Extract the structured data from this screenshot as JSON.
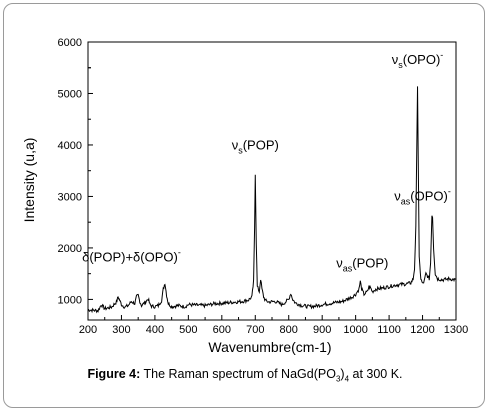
{
  "chart_data": {
    "type": "line",
    "xlabel": "Wavenumbre(cm-1)",
    "ylabel": "Intensity (u,a)",
    "xlim": [
      200,
      1300
    ],
    "ylim": [
      600,
      6000
    ],
    "xticks": [
      200,
      300,
      400,
      500,
      600,
      700,
      800,
      900,
      1000,
      1100,
      1200,
      1300
    ],
    "yticks": [
      1000,
      2000,
      3000,
      4000,
      5000,
      6000
    ],
    "grid": false,
    "series": [
      {
        "color": "#000000",
        "x": [
          200,
          230,
          240,
          250,
          270,
          285,
          290,
          295,
          300,
          310,
          320,
          330,
          340,
          345,
          350,
          355,
          360,
          370,
          380,
          385,
          390,
          400,
          410,
          420,
          425,
          430,
          435,
          440,
          450,
          470,
          490,
          500,
          520,
          550,
          580,
          610,
          640,
          660,
          680,
          690,
          695,
          698,
          700,
          703,
          706,
          712,
          716,
          720,
          725,
          730,
          740,
          760,
          780,
          800,
          806,
          812,
          820,
          840,
          860,
          880,
          900,
          930,
          960,
          990,
          1000,
          1010,
          1014,
          1018,
          1025,
          1035,
          1040,
          1045,
          1050,
          1060,
          1080,
          1100,
          1120,
          1150,
          1165,
          1172,
          1176,
          1180,
          1183,
          1185,
          1187,
          1190,
          1195,
          1200,
          1205,
          1210,
          1215,
          1220,
          1224,
          1228,
          1230,
          1233,
          1238,
          1245,
          1260,
          1280,
          1300
        ],
        "y": [
          800,
          780,
          900,
          820,
          850,
          950,
          1050,
          980,
          900,
          850,
          880,
          960,
          920,
          1050,
          1080,
          960,
          880,
          940,
          1010,
          900,
          870,
          860,
          880,
          980,
          1200,
          1320,
          1080,
          920,
          860,
          880,
          860,
          900,
          890,
          880,
          920,
          930,
          950,
          960,
          990,
          1050,
          1350,
          2400,
          3450,
          2100,
          1250,
          1150,
          1400,
          1200,
          1050,
          980,
          950,
          960,
          900,
          1000,
          1120,
          1000,
          930,
          880,
          860,
          870,
          900,
          930,
          960,
          1050,
          1100,
          1200,
          1350,
          1200,
          1100,
          1150,
          1250,
          1220,
          1150,
          1200,
          1220,
          1250,
          1280,
          1300,
          1320,
          1400,
          1600,
          2400,
          4100,
          5150,
          3800,
          1800,
          1400,
          1300,
          1350,
          1500,
          1450,
          1400,
          1700,
          2650,
          2600,
          2000,
          1500,
          1400,
          1380,
          1400,
          1380
        ]
      }
    ],
    "annotations": [
      {
        "base": "ν",
        "sub": "s",
        "text": "(OPO)",
        "sup": "-",
        "x": 1185,
        "y": 5150
      },
      {
        "base": "ν",
        "sub": "s",
        "text": "(POP)",
        "sup": "",
        "x": 700,
        "y": 3450
      },
      {
        "base": "ν",
        "sub": "as",
        "text": "(OPO)",
        "sup": "-",
        "x": 1230,
        "y": 2650
      },
      {
        "base": "ν",
        "sub": "as",
        "text": "(POP)",
        "sup": "",
        "x": 1020,
        "y": 1350
      },
      {
        "base": "δ(POP)+δ(OPO)",
        "sub": "",
        "text": "",
        "sup": "-",
        "x": 330,
        "y": 1350
      }
    ]
  },
  "caption": {
    "label": "Figure 4:",
    "text_before": "The Raman spectrum of NaGd(PO",
    "sub": "3",
    "text_mid": ")",
    "sub2": "4",
    "text_after": " at 300 K."
  }
}
